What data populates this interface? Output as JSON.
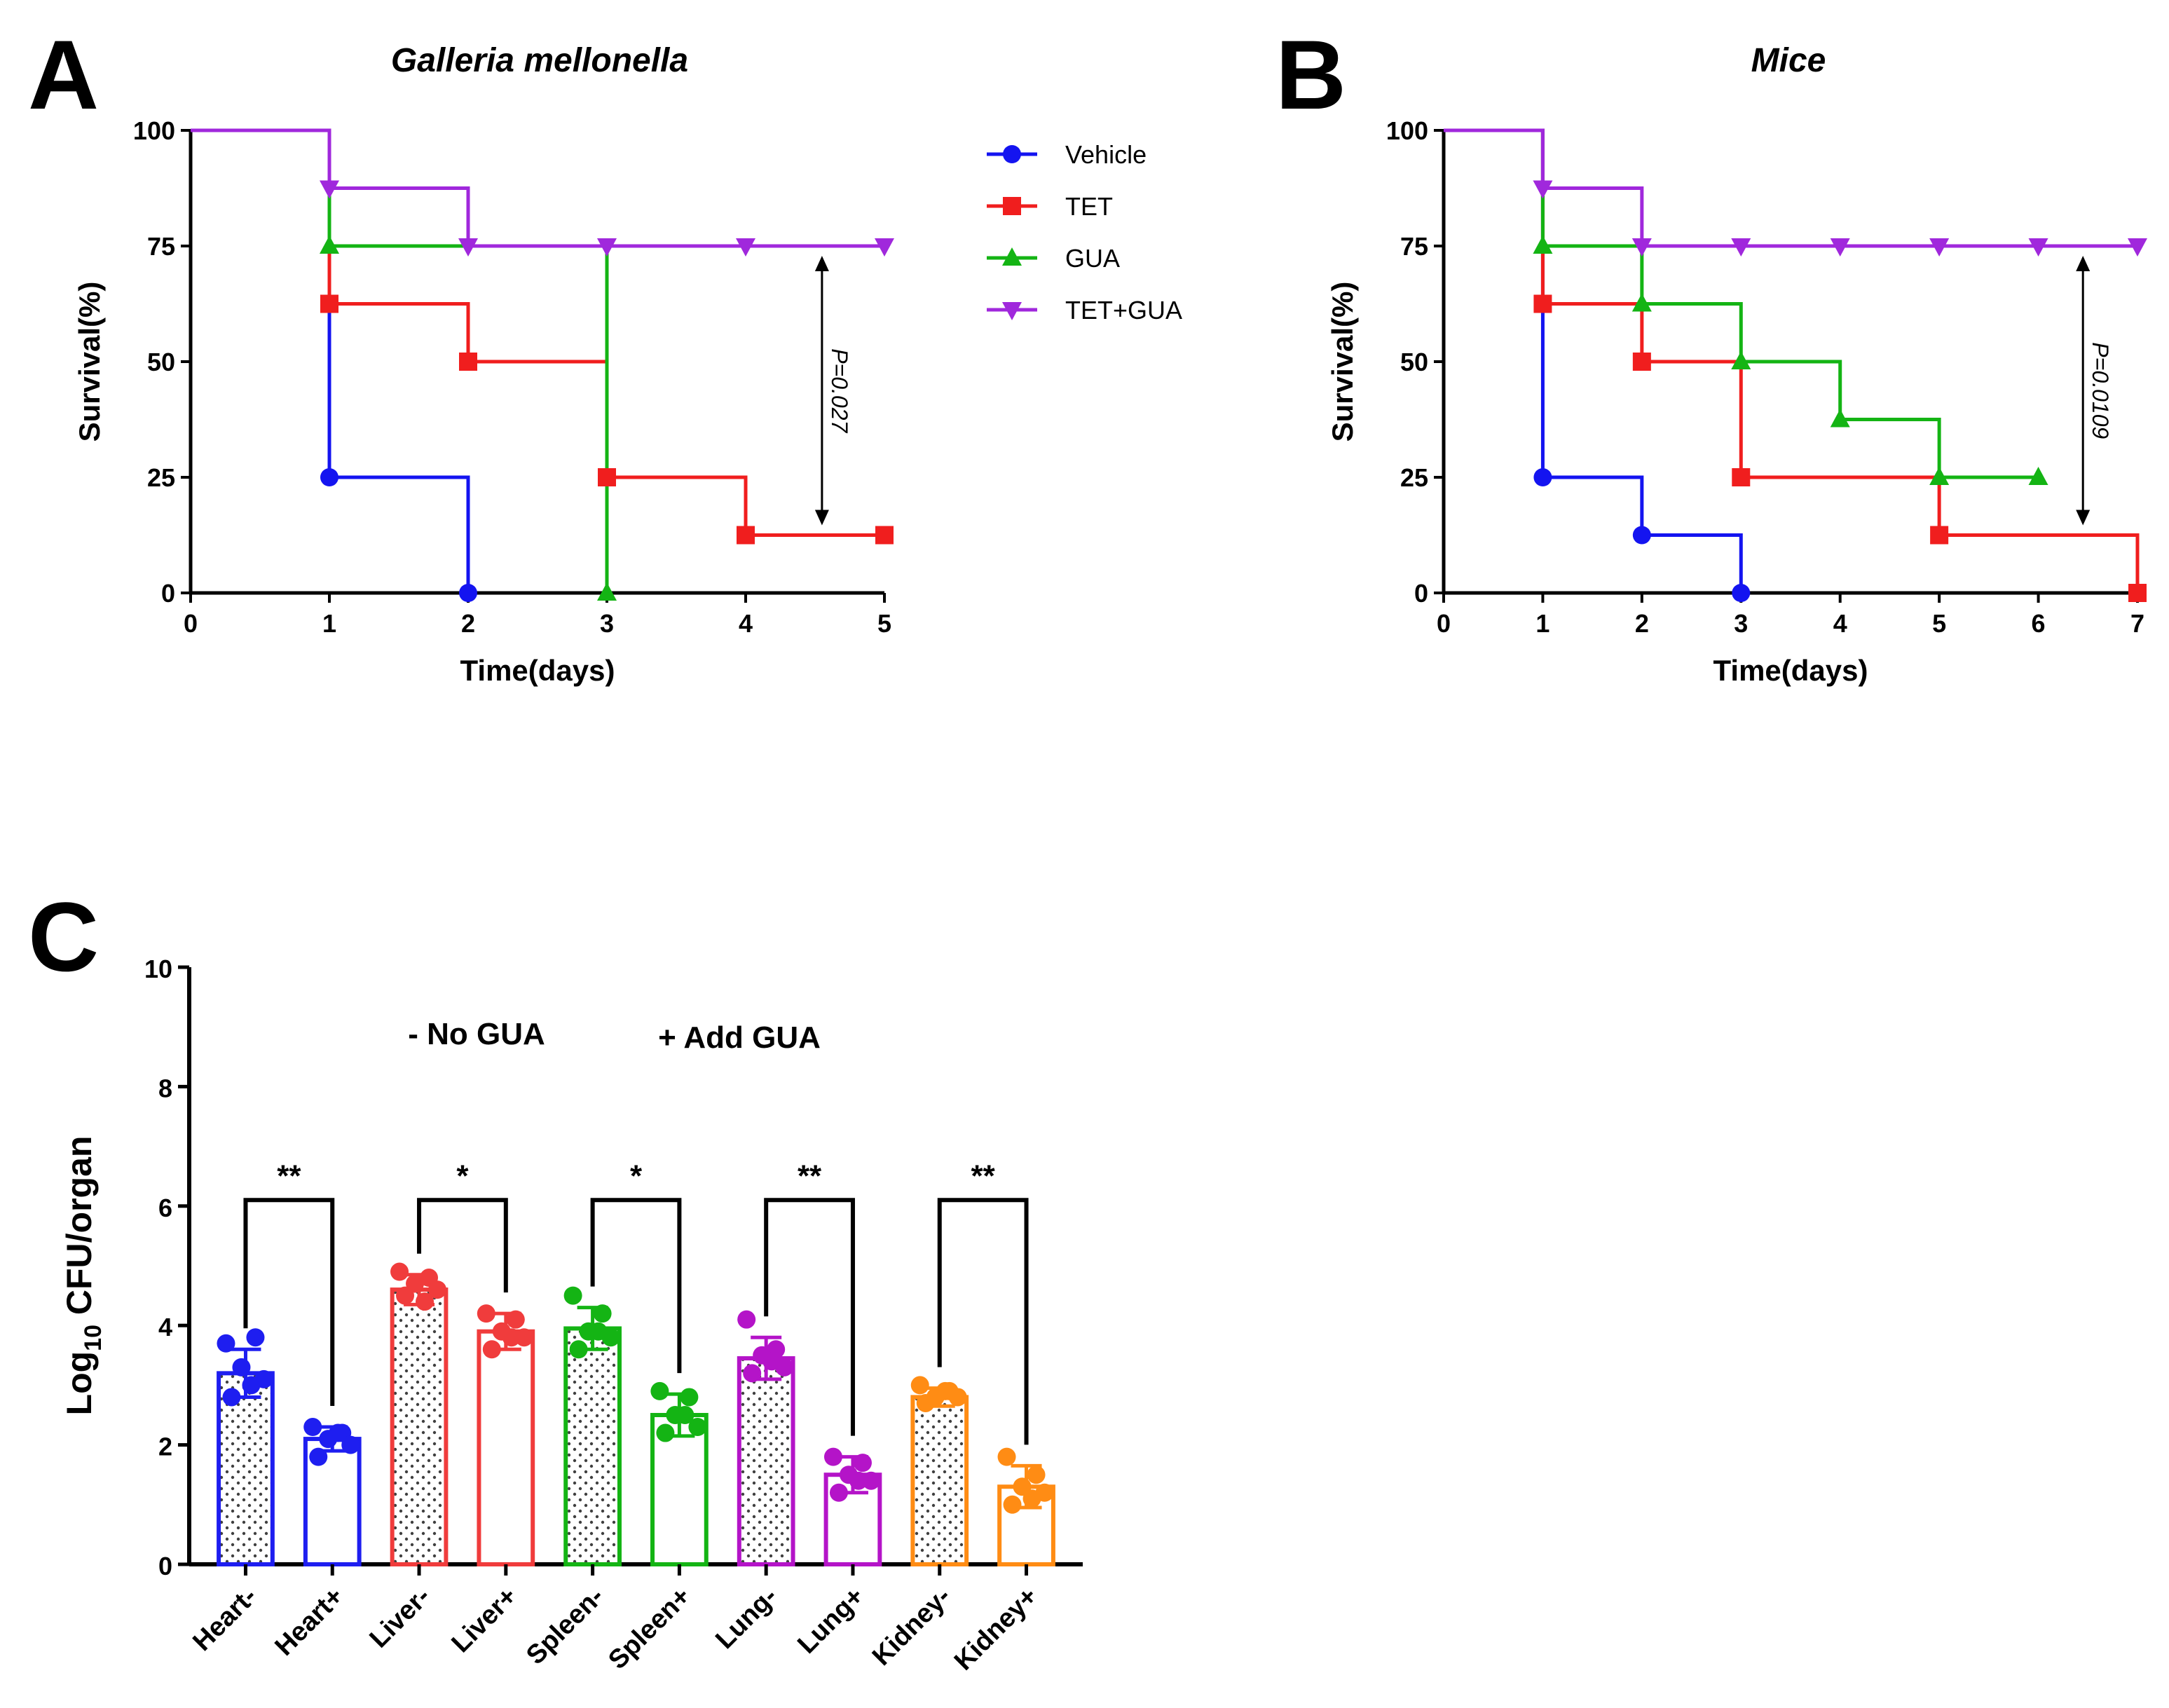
{
  "colors": {
    "vehicle": "#1414f0",
    "tet": "#f01e1e",
    "gua": "#14b414",
    "tetgua": "#a028dc",
    "heart": "#1e1ef0",
    "liver": "#f03c3c",
    "spleen": "#14b414",
    "lung": "#b414c8",
    "kidney": "#ff8c14",
    "axis": "#000000"
  },
  "panel_a": {
    "letter": "A",
    "title": "Galleria mellonella",
    "pvalue_text": "P=0.027"
  },
  "panel_b": {
    "letter": "B",
    "title": "Mice",
    "pvalue_text": "P=0.0109"
  },
  "panel_c": {
    "letter": "C",
    "ylabel_prefix": "Log",
    "ylabel_sub": "10",
    "ylabel_suffix": " CFU/organ",
    "group_minus": "- No GUA",
    "group_plus": "+ Add GUA"
  },
  "legend": [
    {
      "label": "Vehicle",
      "series": "vehicle",
      "marker": "circle"
    },
    {
      "label": "TET",
      "series": "tet",
      "marker": "square"
    },
    {
      "label": "GUA",
      "series": "gua",
      "marker": "triangle-up"
    },
    {
      "label": "TET+GUA",
      "series": "tetgua",
      "marker": "triangle-down"
    }
  ],
  "chart_data": [
    {
      "id": "A",
      "type": "line",
      "step": "post",
      "title": "Galleria mellonella",
      "xlabel": "Time(days)",
      "ylabel": "Survival(%)",
      "xlim": [
        0,
        5
      ],
      "ylim": [
        0,
        100
      ],
      "xticks": [
        0,
        1,
        2,
        3,
        4,
        5
      ],
      "yticks": [
        0,
        25,
        50,
        75,
        100
      ],
      "series": [
        {
          "name": "Vehicle",
          "color_key": "vehicle",
          "marker": "circle",
          "x": [
            0,
            1,
            2
          ],
          "y": [
            100,
            25,
            0
          ],
          "marker_x": [
            1,
            2
          ],
          "marker_y": [
            25,
            0
          ]
        },
        {
          "name": "TET",
          "color_key": "tet",
          "marker": "square",
          "x": [
            0,
            1,
            2,
            3,
            4,
            5
          ],
          "y": [
            100,
            62.5,
            50,
            25,
            12.5,
            12.5
          ],
          "marker_x": [
            1,
            2,
            3,
            4,
            5
          ],
          "marker_y": [
            62.5,
            50,
            25,
            12.5,
            12.5
          ]
        },
        {
          "name": "GUA",
          "color_key": "gua",
          "marker": "triangle-up",
          "x": [
            0,
            1,
            2,
            3
          ],
          "y": [
            100,
            75,
            75,
            0
          ],
          "marker_x": [
            1,
            3
          ],
          "marker_y": [
            75,
            0
          ]
        },
        {
          "name": "TET+GUA",
          "color_key": "tetgua",
          "marker": "triangle-down",
          "x": [
            0,
            1,
            2,
            3,
            4,
            5
          ],
          "y": [
            100,
            87.5,
            75,
            75,
            75,
            75
          ],
          "marker_x": [
            1,
            2,
            3,
            4,
            5
          ],
          "marker_y": [
            87.5,
            75,
            75,
            75,
            75
          ]
        }
      ],
      "annotation": {
        "text": "P=0.027",
        "x": 4.55,
        "y_from": 75,
        "y_to": 12.5
      }
    },
    {
      "id": "B",
      "type": "line",
      "step": "post",
      "title": "Mice",
      "xlabel": "Time(days)",
      "ylabel": "Survival(%)",
      "xlim": [
        0,
        7
      ],
      "ylim": [
        0,
        100
      ],
      "xticks": [
        0,
        1,
        2,
        3,
        4,
        5,
        6,
        7
      ],
      "yticks": [
        0,
        25,
        50,
        75,
        100
      ],
      "series": [
        {
          "name": "Vehicle",
          "color_key": "vehicle",
          "marker": "circle",
          "x": [
            0,
            1,
            2,
            3
          ],
          "y": [
            100,
            25,
            12.5,
            0
          ],
          "marker_x": [
            1,
            2,
            3
          ],
          "marker_y": [
            25,
            12.5,
            0
          ]
        },
        {
          "name": "TET",
          "color_key": "tet",
          "marker": "square",
          "x": [
            0,
            1,
            2,
            3,
            4,
            5,
            7
          ],
          "y": [
            100,
            62.5,
            50,
            25,
            25,
            12.5,
            0
          ],
          "marker_x": [
            1,
            2,
            3,
            5,
            7
          ],
          "marker_y": [
            62.5,
            50,
            25,
            12.5,
            0
          ]
        },
        {
          "name": "GUA",
          "color_key": "gua",
          "marker": "triangle-up",
          "x": [
            0,
            1,
            2,
            3,
            4,
            5,
            6
          ],
          "y": [
            100,
            75,
            62.5,
            50,
            37.5,
            25,
            25
          ],
          "marker_x": [
            1,
            2,
            3,
            4,
            5,
            6
          ],
          "marker_y": [
            75,
            62.5,
            50,
            37.5,
            25,
            25
          ]
        },
        {
          "name": "TET+GUA",
          "color_key": "tetgua",
          "marker": "triangle-down",
          "x": [
            0,
            1,
            2,
            3,
            4,
            5,
            6,
            7
          ],
          "y": [
            100,
            87.5,
            75,
            75,
            75,
            75,
            75,
            75
          ],
          "marker_x": [
            1,
            2,
            3,
            4,
            5,
            6,
            7
          ],
          "marker_y": [
            87.5,
            75,
            75,
            75,
            75,
            75,
            75
          ]
        }
      ],
      "annotation": {
        "text": "P=0.0109",
        "x": 6.45,
        "y_from": 75,
        "y_to": 12.5
      }
    },
    {
      "id": "C",
      "type": "bar",
      "ylabel": "Log10 CFU/organ",
      "ylim": [
        0,
        10
      ],
      "yticks": [
        0,
        2,
        4,
        6,
        8,
        10
      ],
      "categories": [
        "Heart-",
        "Heart+",
        "Liver-",
        "Liver+",
        "Spleen-",
        "Spleen+",
        "Lung-",
        "Lung+",
        "Kidney-",
        "Kidney+"
      ],
      "bars": [
        {
          "category": "Heart-",
          "color_key": "heart",
          "hatched": true,
          "mean": 3.2,
          "sd": 0.4,
          "points": [
            3.7,
            3.8,
            3.3,
            3.1,
            2.8,
            3.0
          ]
        },
        {
          "category": "Heart+",
          "color_key": "heart",
          "hatched": false,
          "mean": 2.1,
          "sd": 0.2,
          "points": [
            2.3,
            2.2,
            2.1,
            2.0,
            1.8,
            2.2
          ]
        },
        {
          "category": "Liver-",
          "color_key": "liver",
          "hatched": true,
          "mean": 4.6,
          "sd": 0.25,
          "points": [
            4.9,
            4.8,
            4.7,
            4.6,
            4.5,
            4.4
          ]
        },
        {
          "category": "Liver+",
          "color_key": "liver",
          "hatched": false,
          "mean": 3.9,
          "sd": 0.3,
          "points": [
            4.2,
            4.1,
            3.9,
            3.8,
            3.6,
            3.8
          ]
        },
        {
          "category": "Spleen-",
          "color_key": "spleen",
          "hatched": true,
          "mean": 3.95,
          "sd": 0.35,
          "points": [
            4.5,
            4.2,
            3.9,
            3.8,
            3.6,
            3.9
          ]
        },
        {
          "category": "Spleen+",
          "color_key": "spleen",
          "hatched": false,
          "mean": 2.5,
          "sd": 0.35,
          "points": [
            2.9,
            2.8,
            2.5,
            2.3,
            2.2,
            2.5
          ]
        },
        {
          "category": "Lung-",
          "color_key": "lung",
          "hatched": true,
          "mean": 3.45,
          "sd": 0.35,
          "points": [
            4.1,
            3.6,
            3.5,
            3.3,
            3.2,
            3.4
          ]
        },
        {
          "category": "Lung+",
          "color_key": "lung",
          "hatched": false,
          "mean": 1.5,
          "sd": 0.3,
          "points": [
            1.8,
            1.7,
            1.5,
            1.4,
            1.2,
            1.4
          ]
        },
        {
          "category": "Kidney-",
          "color_key": "kidney",
          "hatched": true,
          "mean": 2.8,
          "sd": 0.15,
          "points": [
            3.0,
            2.9,
            2.8,
            2.8,
            2.7,
            2.9
          ]
        },
        {
          "category": "Kidney+",
          "color_key": "kidney",
          "hatched": false,
          "mean": 1.3,
          "sd": 0.35,
          "points": [
            1.8,
            1.5,
            1.3,
            1.2,
            1.0,
            1.1
          ]
        }
      ],
      "comparisons": [
        {
          "from": "Heart-",
          "to": "Heart+",
          "label": "**"
        },
        {
          "from": "Liver-",
          "to": "Liver+",
          "label": "*"
        },
        {
          "from": "Spleen-",
          "to": "Spleen+",
          "label": "*"
        },
        {
          "from": "Lung-",
          "to": "Lung+",
          "label": "**"
        },
        {
          "from": "Kidney-",
          "to": "Kidney+",
          "label": "**"
        }
      ]
    }
  ]
}
